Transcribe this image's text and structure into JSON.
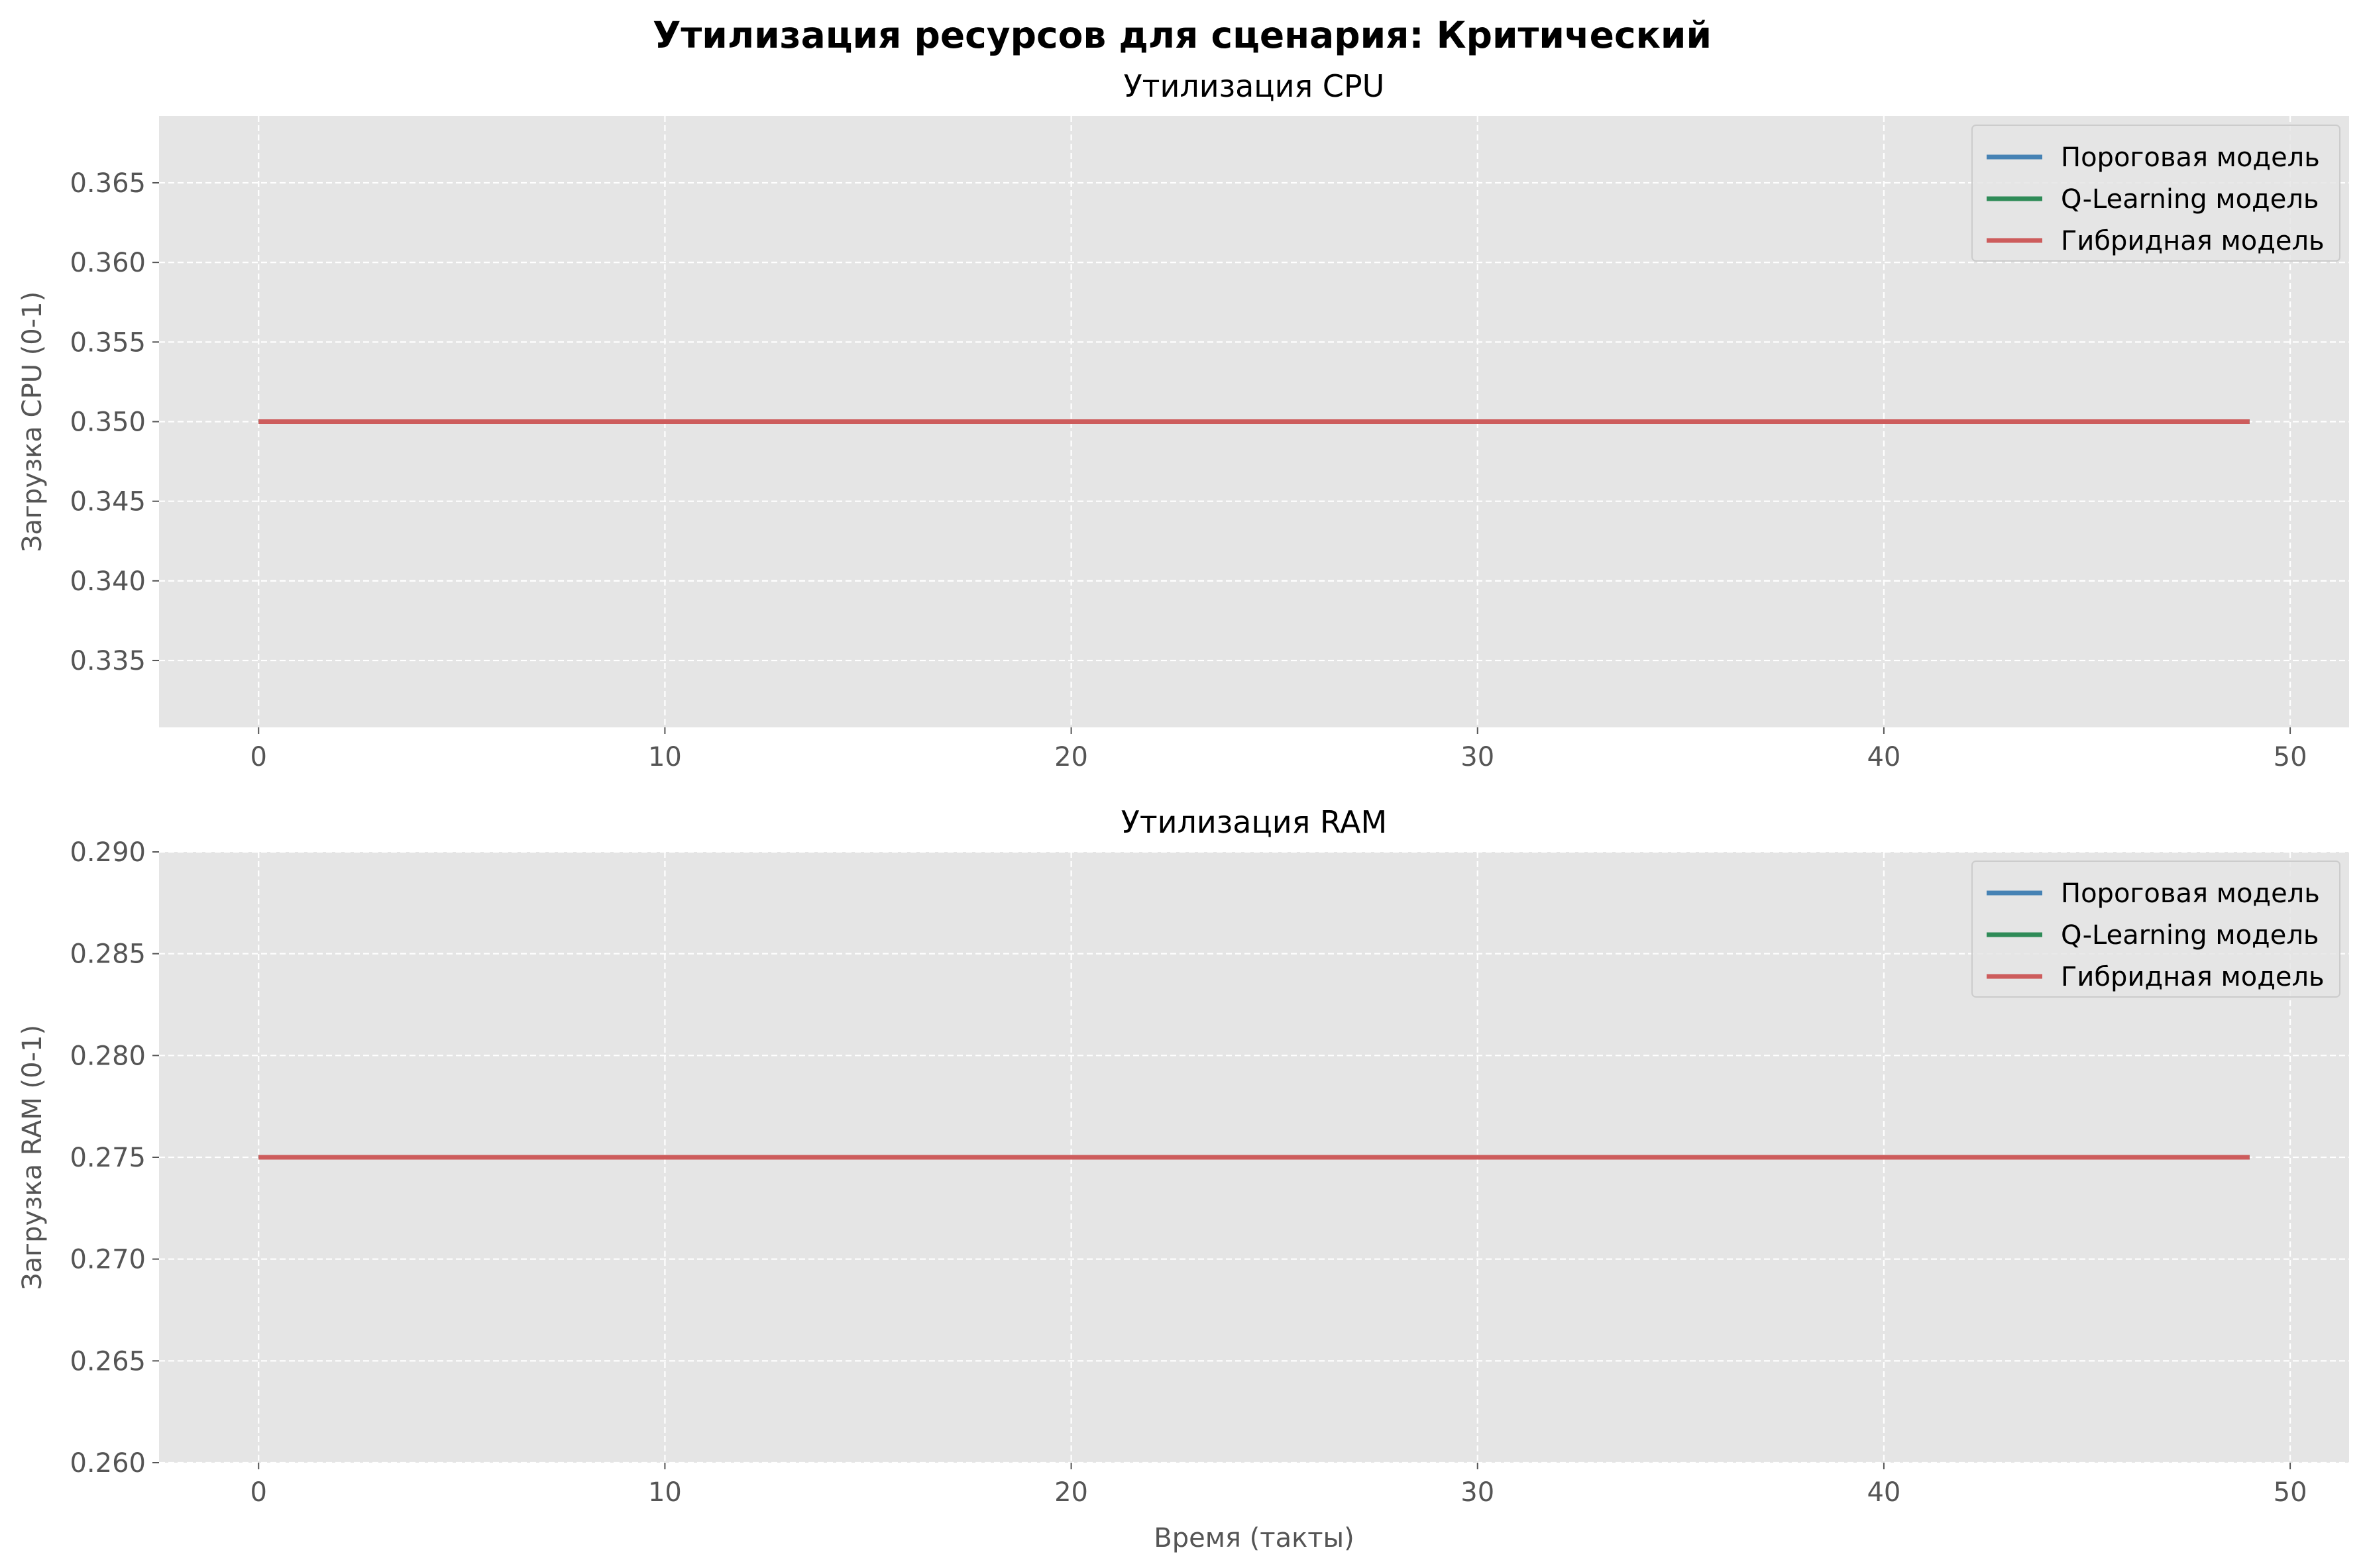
{
  "figure": {
    "title": "Утилизация ресурсов для сценария: Критический"
  },
  "chart_data": [
    {
      "type": "line",
      "title": "Утилизация CPU",
      "xlabel": "",
      "ylabel": "Загрузка CPU (0-1)",
      "xlim": [
        -2.45,
        51.45
      ],
      "ylim": [
        0.3308,
        0.3692
      ],
      "xticks": [
        0,
        10,
        20,
        30,
        40,
        50
      ],
      "yticks": [
        0.335,
        0.34,
        0.345,
        0.35,
        0.355,
        0.36,
        0.365
      ],
      "ytick_labels": [
        "0.335",
        "0.340",
        "0.345",
        "0.350",
        "0.355",
        "0.360",
        "0.365"
      ],
      "grid": true,
      "legend": "upper right",
      "series": [
        {
          "name": "Пороговая модель",
          "color": "#4682b4",
          "x_start": 0,
          "x_end": 49,
          "y": 0.35
        },
        {
          "name": "Q-Learning модель",
          "color": "#2e8b57",
          "x_start": 0,
          "x_end": 49,
          "y": 0.35
        },
        {
          "name": "Гибридная модель",
          "color": "#cd5c5c",
          "x_start": 0,
          "x_end": 49,
          "y": 0.35
        }
      ]
    },
    {
      "type": "line",
      "title": "Утилизация RAM",
      "xlabel": "Время (такты)",
      "ylabel": "Загрузка RAM (0-1)",
      "xlim": [
        -2.45,
        51.45
      ],
      "ylim": [
        0.26,
        0.29
      ],
      "xticks": [
        0,
        10,
        20,
        30,
        40,
        50
      ],
      "yticks": [
        0.26,
        0.265,
        0.27,
        0.275,
        0.28,
        0.285,
        0.29
      ],
      "ytick_labels": [
        "0.260",
        "0.265",
        "0.270",
        "0.275",
        "0.280",
        "0.285",
        "0.290"
      ],
      "grid": true,
      "legend": "upper right",
      "series": [
        {
          "name": "Пороговая модель",
          "color": "#4682b4",
          "x_start": 0,
          "x_end": 49,
          "y": 0.275
        },
        {
          "name": "Q-Learning модель",
          "color": "#2e8b57",
          "x_start": 0,
          "x_end": 49,
          "y": 0.275
        },
        {
          "name": "Гибридная модель",
          "color": "#cd5c5c",
          "x_start": 0,
          "x_end": 49,
          "y": 0.275
        }
      ]
    }
  ]
}
